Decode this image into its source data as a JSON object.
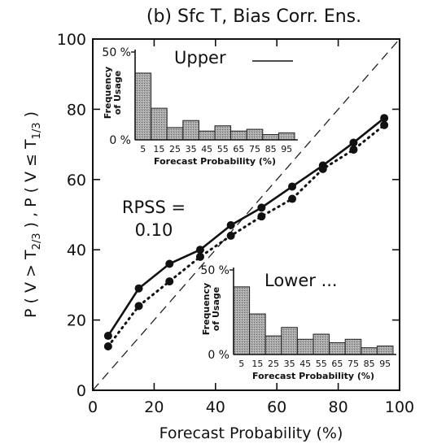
{
  "chart_data": [
    {
      "type": "line",
      "title": "(b) Sfc T, Bias Corr. Ens.",
      "xlabel": "Forecast Probability (%)",
      "ylabel_parts": [
        "P ( V > T",
        "2/3",
        " ) , P ( V ≤ T",
        "1/3",
        " )"
      ],
      "xlim": [
        0,
        100
      ],
      "ylim": [
        0,
        100
      ],
      "xticks": [
        "0",
        "20",
        "40",
        "60",
        "80",
        "100"
      ],
      "yticks": [
        "0",
        "20",
        "40",
        "60",
        "80",
        "100"
      ],
      "x": [
        5,
        15,
        25,
        35,
        45,
        55,
        65,
        75,
        85,
        95
      ],
      "series": [
        {
          "name": "Upper",
          "style": "solid",
          "values": [
            15.5,
            29,
            36,
            40,
            47,
            52,
            58,
            64,
            70.5,
            77.5
          ]
        },
        {
          "name": "Lower",
          "style": "dotted",
          "values": [
            12.5,
            24,
            31,
            38,
            44,
            49.5,
            54.5,
            63,
            68.5,
            75.5
          ]
        }
      ],
      "diagonal": true,
      "annotation": {
        "line1": "RPSS =",
        "line2": "0.10"
      }
    },
    {
      "type": "bar",
      "legend_label": "Upper",
      "legend_style": "solid",
      "categories": [
        "5",
        "15",
        "25",
        "35",
        "45",
        "55",
        "65",
        "75",
        "85",
        "95"
      ],
      "values": [
        38,
        18,
        7,
        11,
        5,
        8,
        5,
        6,
        3,
        4
      ],
      "ylabel": "Frequency of Usage",
      "ylabel_lines": [
        "Frequency",
        "of Usage"
      ],
      "yticks": [
        "0 %",
        "50 %"
      ],
      "ylim": [
        0,
        50
      ],
      "xlabel": "Forecast Probability (%)"
    },
    {
      "type": "bar",
      "legend_label": "Lower ...",
      "legend_style": "dotted",
      "categories": [
        "5",
        "15",
        "25",
        "35",
        "45",
        "55",
        "65",
        "75",
        "85",
        "95"
      ],
      "values": [
        40,
        24,
        11,
        16,
        9,
        12,
        7,
        9,
        4,
        5
      ],
      "ylabel": "Frequency of Usage",
      "ylabel_lines": [
        "Frequency",
        "of Usage"
      ],
      "yticks": [
        "0 %",
        "50 %"
      ],
      "ylim": [
        0,
        50
      ],
      "xlabel": "Forecast Probability (%)"
    }
  ]
}
